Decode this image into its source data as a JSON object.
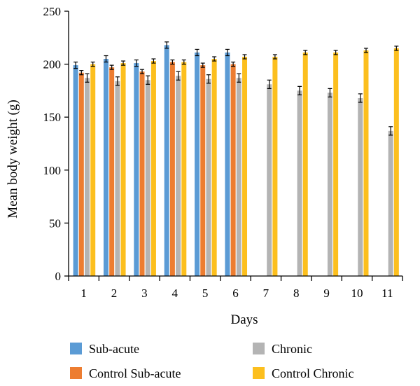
{
  "chart_data": {
    "type": "bar",
    "title": "",
    "xlabel": "Days",
    "ylabel": "Mean body weight (g)",
    "ylim": [
      0,
      250
    ],
    "yticks": [
      0,
      50,
      100,
      150,
      200,
      250
    ],
    "grid": false,
    "legend_position": "bottom",
    "categories": [
      "1",
      "2",
      "3",
      "4",
      "5",
      "6",
      "7",
      "8",
      "9",
      "10",
      "11"
    ],
    "series": [
      {
        "name": "Sub-acute",
        "color": "#5b9bd5",
        "values": [
          199,
          205,
          201,
          218,
          211,
          211,
          null,
          null,
          null,
          null,
          null
        ],
        "errors": [
          3,
          3,
          3,
          3,
          3,
          3,
          null,
          null,
          null,
          null,
          null
        ]
      },
      {
        "name": "Control Sub-acute",
        "color": "#ed7d31",
        "values": [
          192,
          197,
          193,
          202,
          199,
          200,
          null,
          null,
          null,
          null,
          null
        ],
        "errors": [
          2,
          2,
          2,
          2,
          2,
          2,
          null,
          null,
          null,
          null,
          null
        ]
      },
      {
        "name": "Chronic",
        "color": "#b4b4b4",
        "values": [
          187,
          184,
          185,
          189,
          186,
          187,
          181,
          175,
          173,
          168,
          137
        ],
        "errors": [
          4,
          4,
          4,
          4,
          4,
          4,
          4,
          4,
          4,
          4,
          4
        ]
      },
      {
        "name": "Control Chronic",
        "color": "#fcbf1e",
        "values": [
          200,
          201,
          203,
          202,
          205,
          207,
          207,
          211,
          211,
          213,
          215
        ],
        "errors": [
          2,
          2,
          2,
          2,
          2,
          2,
          2,
          2,
          2,
          2,
          2
        ]
      }
    ],
    "legend": {
      "columns": [
        [
          "Sub-acute",
          "Control Sub-acute"
        ],
        [
          "Chronic",
          "Control Chronic"
        ]
      ]
    }
  }
}
